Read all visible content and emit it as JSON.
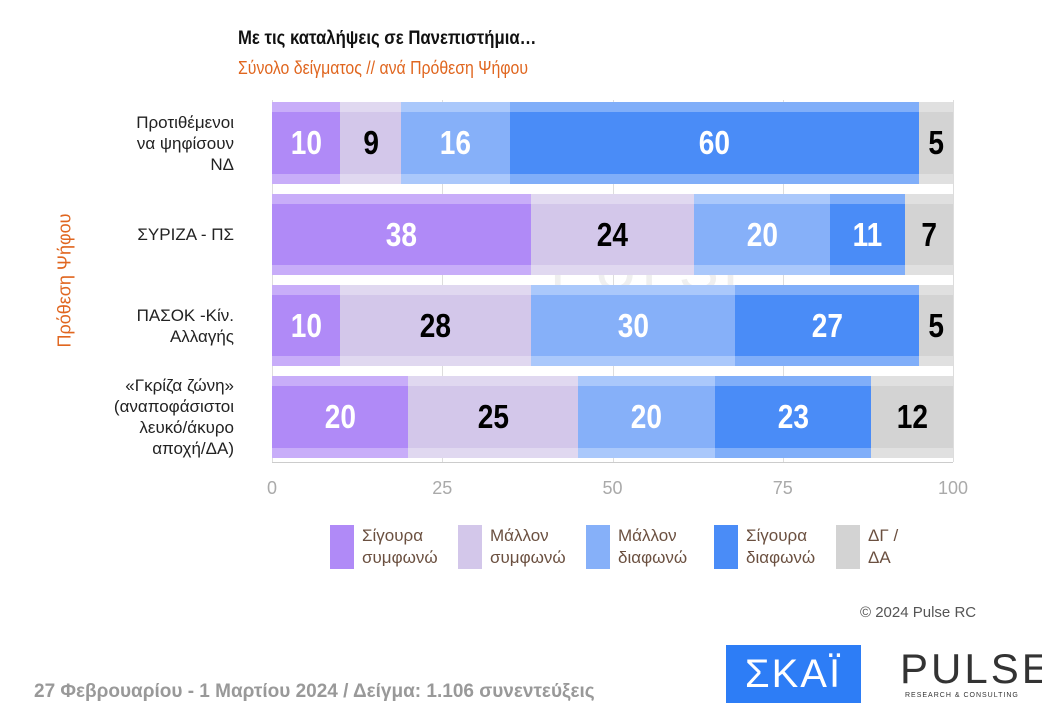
{
  "chart_data": {
    "type": "bar",
    "orientation": "horizontal",
    "stacked": true,
    "title": "Με τις καταλήψεις σε Πανεπιστήμια…",
    "subtitle": "Σύνολο δείγματος // ανά Πρόθεση Ψήφου",
    "ylabel": "Πρόθεση Ψήφου",
    "xlim": [
      0,
      100
    ],
    "xticks": [
      "0",
      "25",
      "50",
      "75",
      "100"
    ],
    "grid": true,
    "legend_position": "bottom",
    "categories": [
      "Προτιθέμενοι να ψηφίσουν ΝΔ",
      "ΣΥΡΙΖΑ - ΠΣ",
      "ΠΑΣΟΚ -Κίν. Αλλαγής",
      "«Γκρίζα ζώνη» (αναποφάσιστοι λευκό/άκυρο αποχή/ΔΑ)"
    ],
    "category_lines": [
      [
        "Προτιθέμενοι",
        "να ψηφίσουν",
        "ΝΔ"
      ],
      [
        "ΣΥΡΙΖΑ - ΠΣ"
      ],
      [
        "ΠΑΣΟΚ -Κίν.",
        "Αλλαγής"
      ],
      [
        "«Γκρίζα ζώνη»",
        "(αναποφάσιστοι",
        "λευκό/άκυρο",
        "αποχή/ΔΑ)"
      ]
    ],
    "series": [
      {
        "name": "Σίγουρα συμφωνώ",
        "color": "#b08af7",
        "label_color": "#ffffff",
        "values": [
          10,
          38,
          10,
          20
        ]
      },
      {
        "name": "Μάλλον συμφωνώ",
        "color": "#d3c7ea",
        "label_color": "#000000",
        "values": [
          9,
          24,
          28,
          25
        ]
      },
      {
        "name": "Μάλλον διαφωνώ",
        "color": "#86b0f9",
        "label_color": "#ffffff",
        "values": [
          16,
          20,
          30,
          20
        ]
      },
      {
        "name": "Σίγουρα διαφωνώ",
        "color": "#4a8cf7",
        "label_color": "#ffffff",
        "values": [
          60,
          11,
          27,
          23
        ]
      },
      {
        "name": "ΔΓ / ΔΑ",
        "color": "#d3d3d3",
        "label_color": "#000000",
        "values": [
          5,
          7,
          5,
          12
        ]
      }
    ],
    "legend_lines": [
      [
        "Σίγουρα",
        "συμφωνώ"
      ],
      [
        "Μάλλον",
        "συμφωνώ"
      ],
      [
        "Μάλλον",
        "διαφωνώ"
      ],
      [
        "Σίγουρα",
        "διαφωνώ"
      ],
      [
        "ΔΓ /",
        "ΔΑ"
      ]
    ]
  },
  "footer": {
    "copyright": "© 2024 Pulse RC",
    "note": "27 Φεβρουαρίου - 1 Μαρτίου 2024  /  Δείγμα:  1.106 συνεντεύξεις",
    "logo_skai": "ΣΚΑΪ",
    "logo_pulse": "PULSE",
    "logo_pulse_sub": "RESEARCH & CONSULTING"
  }
}
